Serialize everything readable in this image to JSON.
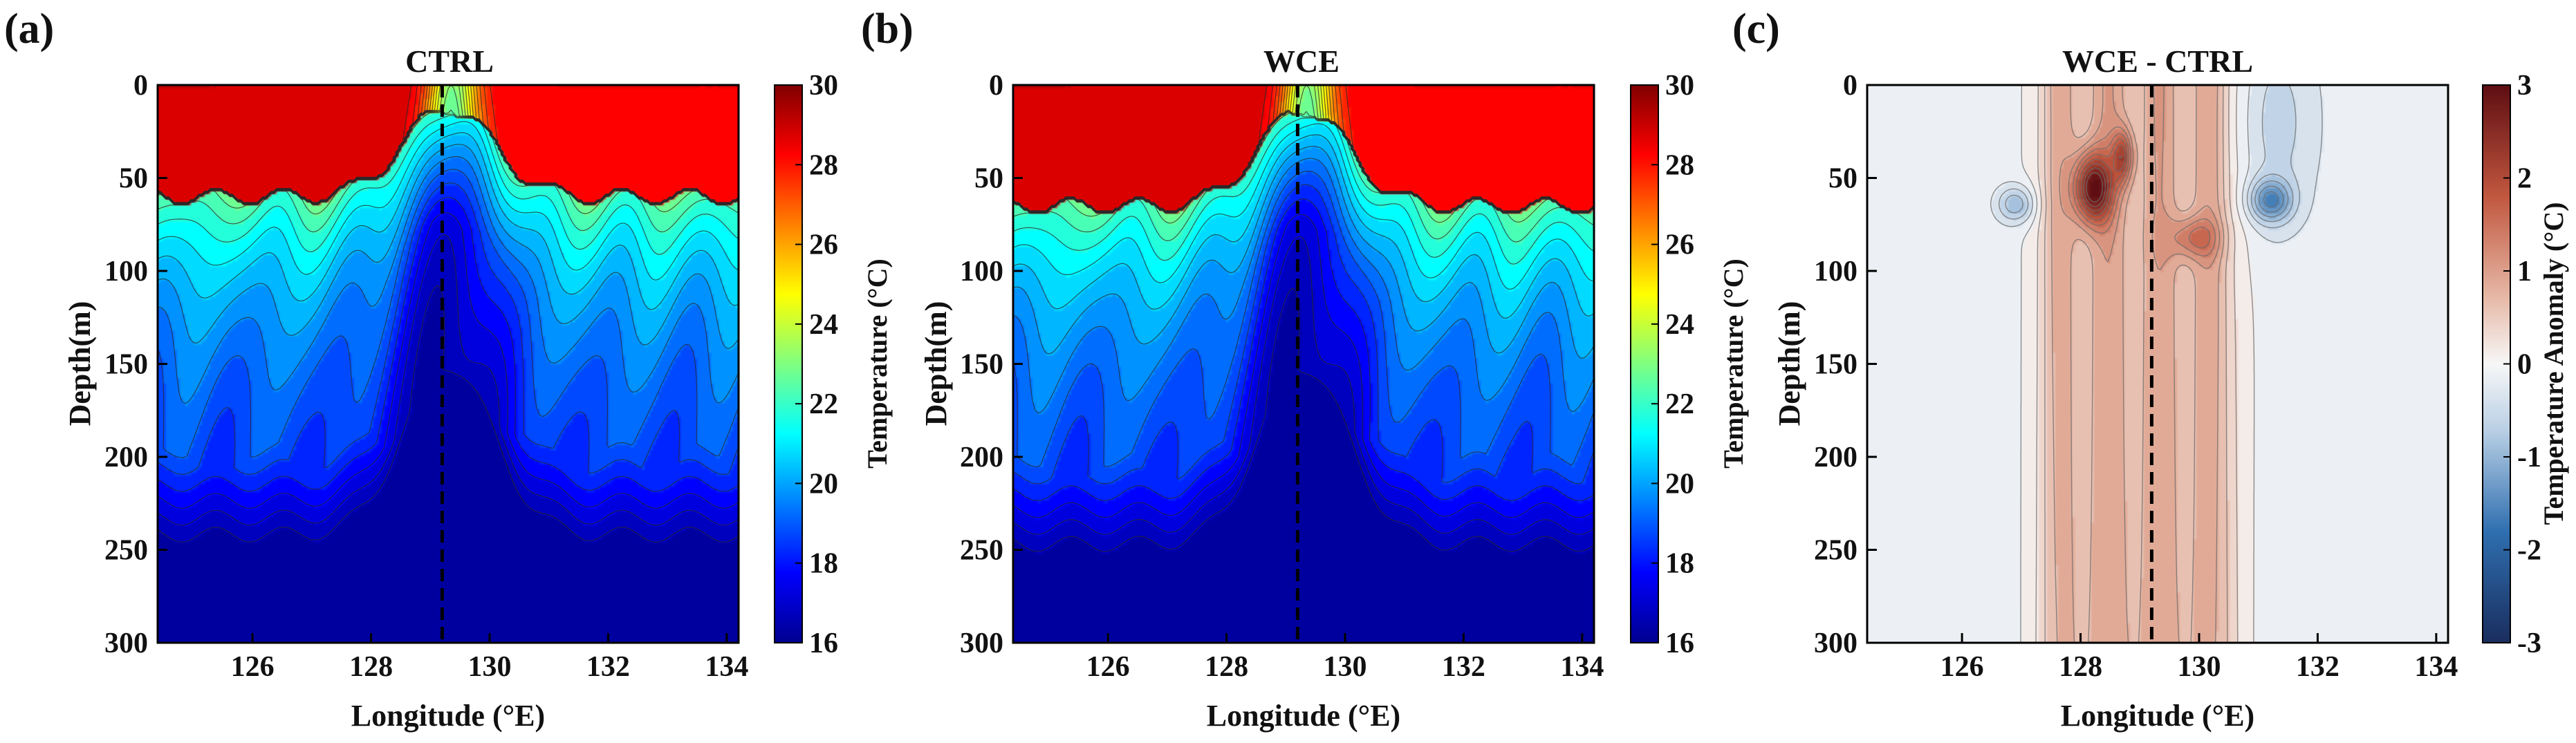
{
  "figure": {
    "panels": [
      {
        "label": "(a)",
        "title": "CTRL"
      },
      {
        "label": "(b)",
        "title": "WCE"
      },
      {
        "label": "(c)",
        "title": "WCE - CTRL"
      }
    ]
  },
  "chart_data": [
    {
      "type": "heatmap",
      "subtype": "filled-contour",
      "panel": "(a)",
      "title": "CTRL",
      "xlabel": "Longitude (°E)",
      "ylabel": "Depth(m)",
      "xlim": [
        124.4,
        134.2
      ],
      "ylim": [
        0,
        300
      ],
      "y_inverted": true,
      "xticks": [
        126,
        128,
        130,
        132,
        134
      ],
      "xtick_labels": [
        "126",
        "128",
        "130",
        "132",
        "134"
      ],
      "yticks": [
        0,
        50,
        100,
        150,
        200,
        250,
        300
      ],
      "ytick_labels": [
        "0",
        "50",
        "100",
        "150",
        "200",
        "250",
        "300"
      ],
      "colorbar": {
        "label": "Temperature (°C)",
        "range": [
          16,
          30
        ],
        "ticks": [
          16,
          18,
          20,
          22,
          24,
          26,
          28,
          30
        ],
        "tick_labels": [
          "16",
          "18",
          "20",
          "22",
          "24",
          "26",
          "28",
          "30"
        ],
        "colormap": "jet"
      },
      "contour_interval_c": 0.5,
      "reference_line_lon": 129.2,
      "description_values": {
        "mixed_layer_temp_west_c": 29,
        "mixed_layer_temp_east_c": 28.5,
        "mixed_layer_depth_m": 60,
        "front_lon": 129.3,
        "bottom_temp_c": 16,
        "front_upwelled_temp_c": 22
      }
    },
    {
      "type": "heatmap",
      "subtype": "filled-contour",
      "panel": "(b)",
      "title": "WCE",
      "xlabel": "Longitude (°E)",
      "ylabel": "Depth(m)",
      "xlim": [
        124.4,
        134.2
      ],
      "ylim": [
        0,
        300
      ],
      "y_inverted": true,
      "xticks": [
        126,
        128,
        130,
        132,
        134
      ],
      "xtick_labels": [
        "126",
        "128",
        "130",
        "132",
        "134"
      ],
      "yticks": [
        0,
        50,
        100,
        150,
        200,
        250,
        300
      ],
      "ytick_labels": [
        "0",
        "50",
        "100",
        "150",
        "200",
        "250",
        "300"
      ],
      "colorbar": {
        "label": "Temperature (°C)",
        "range": [
          16,
          30
        ],
        "ticks": [
          16,
          18,
          20,
          22,
          24,
          26,
          28,
          30
        ],
        "tick_labels": [
          "16",
          "18",
          "20",
          "22",
          "24",
          "26",
          "28",
          "30"
        ],
        "colormap": "jet"
      },
      "contour_interval_c": 0.5,
      "reference_line_lon": 129.2,
      "description_values": {
        "mixed_layer_temp_west_c": 29,
        "mixed_layer_temp_east_c": 28.5,
        "mixed_layer_depth_m": 65,
        "front_lon": 129.3,
        "bottom_temp_c": 16,
        "front_upwelled_temp_c": 22
      }
    },
    {
      "type": "heatmap",
      "subtype": "filled-contour",
      "panel": "(c)",
      "title": "WCE - CTRL",
      "xlabel": "Longitude (°E)",
      "ylabel": "Depth(m)",
      "xlim": [
        124.4,
        134.2
      ],
      "ylim": [
        0,
        300
      ],
      "y_inverted": true,
      "xticks": [
        126,
        128,
        130,
        132,
        134
      ],
      "xtick_labels": [
        "126",
        "128",
        "130",
        "132",
        "134"
      ],
      "yticks": [
        0,
        50,
        100,
        150,
        200,
        250,
        300
      ],
      "ytick_labels": [
        "0",
        "50",
        "100",
        "150",
        "200",
        "250",
        "300"
      ],
      "colorbar": {
        "label": "Temperature Anomaly (°C)",
        "range": [
          -3,
          3
        ],
        "ticks": [
          -3,
          -2,
          -1,
          0,
          1,
          2,
          3
        ],
        "tick_labels": [
          "-3",
          "-2",
          "-1",
          "0",
          "1",
          "2",
          "3"
        ],
        "colormap": "diverging-blue-white-red"
      },
      "reference_line_lon": 129.2,
      "description_values": {
        "warm_core_lon_range": [
          127.3,
          130.6
        ],
        "warm_core_anomaly_c": 0.9,
        "max_anomaly_c": 3,
        "max_anomaly_lon": 128.2,
        "max_anomaly_depth_m": 55,
        "background_anomaly_c": -0.1
      }
    }
  ]
}
